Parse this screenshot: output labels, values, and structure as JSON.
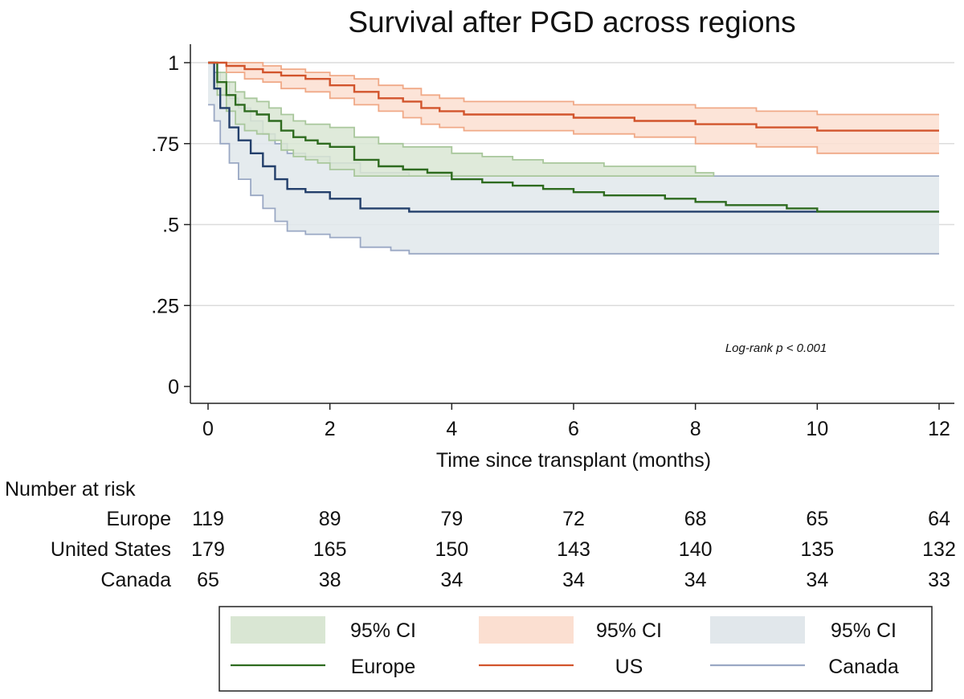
{
  "chart_data": {
    "type": "line",
    "title": "Survival after PGD across regions",
    "xlabel": "Time since transplant (months)",
    "ylabel": "",
    "xlim": [
      0,
      12
    ],
    "ylim": [
      0,
      1
    ],
    "x_ticks": [
      0,
      2,
      4,
      6,
      8,
      10,
      12
    ],
    "x_tick_labels": [
      "0",
      "2",
      "4",
      "6",
      "8",
      "10",
      "12"
    ],
    "y_ticks": [
      0,
      0.25,
      0.5,
      0.75,
      1
    ],
    "y_tick_labels": [
      "0",
      ".25",
      ".5",
      ".75",
      "1"
    ],
    "annotation": "Log-rank p < 0.001",
    "series": [
      {
        "name": "Europe",
        "color": "#2e6b1f",
        "ci_color": "#d9e6d3",
        "ci_edge": "#a9c79c",
        "x": [
          0,
          0.15,
          0.3,
          0.45,
          0.6,
          0.8,
          1.0,
          1.2,
          1.4,
          1.6,
          1.8,
          2.0,
          2.4,
          2.8,
          3.2,
          3.6,
          4.0,
          4.5,
          5.0,
          5.5,
          6.0,
          6.5,
          7.0,
          7.5,
          8.0,
          8.5,
          9.0,
          9.5,
          10.0,
          10.3,
          12.0
        ],
        "y": [
          1,
          0.94,
          0.9,
          0.87,
          0.85,
          0.84,
          0.82,
          0.79,
          0.77,
          0.76,
          0.75,
          0.74,
          0.7,
          0.68,
          0.67,
          0.66,
          0.64,
          0.63,
          0.62,
          0.61,
          0.6,
          0.59,
          0.59,
          0.58,
          0.57,
          0.56,
          0.56,
          0.55,
          0.54,
          0.54,
          0.54
        ],
        "ci_upper": [
          1,
          0.97,
          0.94,
          0.91,
          0.89,
          0.88,
          0.86,
          0.84,
          0.82,
          0.81,
          0.81,
          0.8,
          0.77,
          0.75,
          0.74,
          0.74,
          0.72,
          0.71,
          0.7,
          0.69,
          0.69,
          0.68,
          0.68,
          0.68,
          0.66,
          0.65
        ],
        "ci_lower": [
          1,
          0.9,
          0.85,
          0.81,
          0.79,
          0.78,
          0.76,
          0.73,
          0.71,
          0.7,
          0.69,
          0.67,
          0.65,
          0.65,
          0.65,
          0.65,
          0.65,
          0.65,
          0.65,
          0.65,
          0.65,
          0.65,
          0.65,
          0.65,
          0.65,
          0.65
        ],
        "ci_x": [
          0,
          0.15,
          0.3,
          0.45,
          0.6,
          0.8,
          1.0,
          1.2,
          1.4,
          1.6,
          1.8,
          2.0,
          2.4,
          2.8,
          3.2,
          3.6,
          4.0,
          4.5,
          5.0,
          5.5,
          6.0,
          6.5,
          7.0,
          7.5,
          8.0,
          8.3
        ]
      },
      {
        "name": "US",
        "color": "#d2542c",
        "ci_color": "#fbdfd1",
        "ci_edge": "#f0a987",
        "x": [
          0,
          0.3,
          0.6,
          0.9,
          1.2,
          1.6,
          2.0,
          2.4,
          2.8,
          3.2,
          3.5,
          3.8,
          4.2,
          5.0,
          6.0,
          7.0,
          8.0,
          9.0,
          10.0,
          12.0
        ],
        "y": [
          1,
          0.99,
          0.98,
          0.97,
          0.96,
          0.95,
          0.93,
          0.91,
          0.89,
          0.88,
          0.86,
          0.85,
          0.84,
          0.84,
          0.83,
          0.82,
          0.81,
          0.8,
          0.79,
          0.79
        ],
        "ci_upper": [
          1,
          1,
          1,
          0.99,
          0.98,
          0.97,
          0.96,
          0.95,
          0.93,
          0.92,
          0.9,
          0.89,
          0.88,
          0.88,
          0.87,
          0.87,
          0.86,
          0.85,
          0.84,
          0.84
        ],
        "ci_lower": [
          1,
          0.97,
          0.95,
          0.94,
          0.92,
          0.91,
          0.89,
          0.87,
          0.85,
          0.83,
          0.81,
          0.8,
          0.79,
          0.79,
          0.78,
          0.77,
          0.75,
          0.74,
          0.72,
          0.72
        ]
      },
      {
        "name": "Canada",
        "color": "#233f6b",
        "ci_color": "#e1e7eb",
        "ci_edge": "#9aa8c4",
        "x": [
          0,
          0.1,
          0.2,
          0.35,
          0.5,
          0.7,
          0.9,
          1.1,
          1.3,
          1.6,
          2.0,
          2.5,
          3.0,
          3.3,
          12.0
        ],
        "y": [
          1,
          0.92,
          0.86,
          0.8,
          0.76,
          0.72,
          0.68,
          0.64,
          0.61,
          0.6,
          0.58,
          0.55,
          0.55,
          0.54,
          0.54
        ],
        "ci_upper": [
          1,
          0.97,
          0.94,
          0.89,
          0.86,
          0.82,
          0.78,
          0.75,
          0.72,
          0.71,
          0.69,
          0.66,
          0.66,
          0.65,
          0.65
        ],
        "ci_lower": [
          0.87,
          0.82,
          0.75,
          0.69,
          0.64,
          0.59,
          0.55,
          0.51,
          0.48,
          0.47,
          0.46,
          0.43,
          0.42,
          0.41,
          0.41
        ]
      }
    ]
  },
  "risk_table": {
    "header": "Number at risk",
    "rows": [
      {
        "label": "Europe",
        "values": [
          "119",
          "89",
          "79",
          "72",
          "68",
          "65",
          "64"
        ]
      },
      {
        "label": "United States",
        "values": [
          "179",
          "165",
          "150",
          "143",
          "140",
          "135",
          "132"
        ]
      },
      {
        "label": "Canada",
        "values": [
          "65",
          "38",
          "34",
          "34",
          "34",
          "34",
          "33"
        ]
      }
    ]
  },
  "legend": {
    "items": [
      {
        "label": "95% CI",
        "kind": "band",
        "series": "Europe"
      },
      {
        "label": "95% CI",
        "kind": "band",
        "series": "US"
      },
      {
        "label": "95% CI",
        "kind": "band",
        "series": "Canada"
      },
      {
        "label": "Europe",
        "kind": "line",
        "series": "Europe"
      },
      {
        "label": "US",
        "kind": "line",
        "series": "US"
      },
      {
        "label": "Canada",
        "kind": "line",
        "series": "Canada"
      }
    ]
  }
}
